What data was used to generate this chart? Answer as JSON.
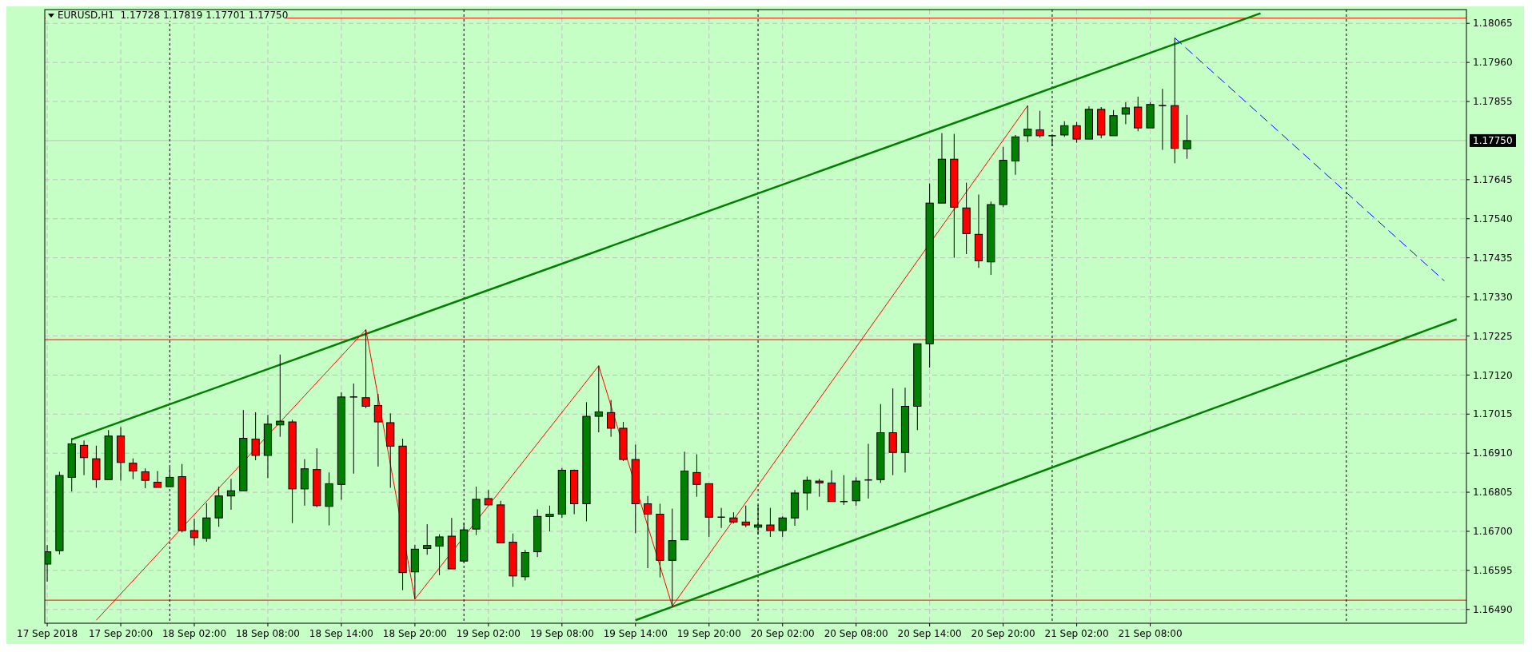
{
  "chart_data": {
    "type": "candlestick",
    "title": "EURUSD,H1  1.17728 1.17819 1.17701 1.17750",
    "x": [
      "2018-09-17T14:00",
      "2018-09-17T15:00",
      "2018-09-17T16:00",
      "2018-09-17T17:00",
      "2018-09-17T18:00",
      "2018-09-17T19:00",
      "2018-09-17T20:00",
      "2018-09-17T21:00",
      "2018-09-17T22:00",
      "2018-09-17T23:00",
      "2018-09-18T00:00",
      "2018-09-18T01:00",
      "2018-09-18T02:00",
      "2018-09-18T03:00",
      "2018-09-18T04:00",
      "2018-09-18T05:00",
      "2018-09-18T06:00",
      "2018-09-18T07:00",
      "2018-09-18T08:00",
      "2018-09-18T09:00",
      "2018-09-18T10:00",
      "2018-09-18T11:00",
      "2018-09-18T12:00",
      "2018-09-18T13:00",
      "2018-09-18T14:00",
      "2018-09-18T15:00",
      "2018-09-18T16:00",
      "2018-09-18T17:00",
      "2018-09-18T18:00",
      "2018-09-18T19:00",
      "2018-09-18T20:00",
      "2018-09-18T21:00",
      "2018-09-18T22:00",
      "2018-09-18T23:00",
      "2018-09-19T00:00",
      "2018-09-19T01:00",
      "2018-09-19T02:00",
      "2018-09-19T03:00",
      "2018-09-19T04:00",
      "2018-09-19T05:00",
      "2018-09-19T06:00",
      "2018-09-19T07:00",
      "2018-09-19T08:00",
      "2018-09-19T09:00",
      "2018-09-19T10:00",
      "2018-09-19T11:00",
      "2018-09-19T12:00",
      "2018-09-19T13:00",
      "2018-09-19T14:00",
      "2018-09-19T15:00",
      "2018-09-19T16:00",
      "2018-09-19T17:00",
      "2018-09-19T18:00",
      "2018-09-19T19:00",
      "2018-09-19T20:00",
      "2018-09-19T21:00",
      "2018-09-19T22:00",
      "2018-09-19T23:00",
      "2018-09-20T00:00",
      "2018-09-20T01:00",
      "2018-09-20T02:00",
      "2018-09-20T03:00",
      "2018-09-20T04:00",
      "2018-09-20T05:00",
      "2018-09-20T06:00",
      "2018-09-20T07:00",
      "2018-09-20T08:00",
      "2018-09-20T09:00",
      "2018-09-20T10:00",
      "2018-09-20T11:00",
      "2018-09-20T12:00",
      "2018-09-20T13:00",
      "2018-09-20T14:00",
      "2018-09-20T15:00",
      "2018-09-20T16:00",
      "2018-09-20T17:00",
      "2018-09-20T18:00",
      "2018-09-20T19:00",
      "2018-09-20T20:00",
      "2018-09-20T21:00",
      "2018-09-20T22:00",
      "2018-09-20T23:00",
      "2018-09-21T00:00",
      "2018-09-21T01:00",
      "2018-09-21T02:00",
      "2018-09-21T03:00",
      "2018-09-21T04:00",
      "2018-09-21T05:00",
      "2018-09-21T06:00",
      "2018-09-21T07:00",
      "2018-09-21T08:00",
      "2018-09-21T09:00",
      "2018-09-21T10:00",
      "2018-09-21T11:00"
    ],
    "ohlc": [
      [
        1.16612,
        1.16663,
        1.16565,
        1.16645
      ],
      [
        1.16648,
        1.1686,
        1.16638,
        1.1685
      ],
      [
        1.16845,
        1.1695,
        1.16807,
        1.16935
      ],
      [
        1.16931,
        1.16944,
        1.16851,
        1.16898
      ],
      [
        1.16895,
        1.1693,
        1.16817,
        1.16839
      ],
      [
        1.16839,
        1.16972,
        1.16839,
        1.16956
      ],
      [
        1.16956,
        1.1698,
        1.16836,
        1.16885
      ],
      [
        1.16883,
        1.16896,
        1.1684,
        1.16862
      ],
      [
        1.1686,
        1.16869,
        1.16816,
        1.16837
      ],
      [
        1.16832,
        1.16862,
        1.16818,
        1.16818
      ],
      [
        1.1682,
        1.16872,
        1.1682,
        1.16845
      ],
      [
        1.16847,
        1.16881,
        1.16697,
        1.16702
      ],
      [
        1.16702,
        1.16734,
        1.16662,
        1.16683
      ],
      [
        1.16681,
        1.16776,
        1.16672,
        1.16736
      ],
      [
        1.16736,
        1.1682,
        1.16712,
        1.16795
      ],
      [
        1.16795,
        1.16841,
        1.16758,
        1.16809
      ],
      [
        1.16809,
        1.17026,
        1.16809,
        1.1695
      ],
      [
        1.16948,
        1.1702,
        1.16891,
        1.16904
      ],
      [
        1.16904,
        1.17013,
        1.16843,
        1.16988
      ],
      [
        1.16986,
        1.17175,
        1.16954,
        1.16996
      ],
      [
        1.16994,
        1.17,
        1.16722,
        1.16814
      ],
      [
        1.16814,
        1.16894,
        1.16769,
        1.16868
      ],
      [
        1.16866,
        1.16923,
        1.16765,
        1.16769
      ],
      [
        1.16767,
        1.16858,
        1.16716,
        1.16828
      ],
      [
        1.16826,
        1.17074,
        1.16785,
        1.17061
      ],
      [
        1.17061,
        1.17097,
        1.16855,
        1.17061
      ],
      [
        1.17059,
        1.17242,
        1.17031,
        1.17036
      ],
      [
        1.17038,
        1.17069,
        1.16874,
        1.16994
      ],
      [
        1.16992,
        1.17017,
        1.16817,
        1.16929
      ],
      [
        1.16929,
        1.16949,
        1.16542,
        1.16589
      ],
      [
        1.16591,
        1.16664,
        1.16518,
        1.16652
      ],
      [
        1.16654,
        1.16719,
        1.16637,
        1.16662
      ],
      [
        1.1666,
        1.16692,
        1.16582,
        1.16685
      ],
      [
        1.16687,
        1.16736,
        1.16599,
        1.16599
      ],
      [
        1.1662,
        1.16723,
        1.16616,
        1.16704
      ],
      [
        1.16706,
        1.1682,
        1.1669,
        1.16786
      ],
      [
        1.16788,
        1.16811,
        1.16771,
        1.16771
      ],
      [
        1.16771,
        1.16782,
        1.16669,
        1.16669
      ],
      [
        1.16671,
        1.16694,
        1.16551,
        1.1658
      ],
      [
        1.16578,
        1.1665,
        1.16568,
        1.16643
      ],
      [
        1.16645,
        1.16759,
        1.16631,
        1.1674
      ],
      [
        1.1674,
        1.16769,
        1.167,
        1.16746
      ],
      [
        1.16746,
        1.1687,
        1.16736,
        1.16864
      ],
      [
        1.16864,
        1.16866,
        1.16746,
        1.16774
      ],
      [
        1.16774,
        1.17047,
        1.16727,
        1.17009
      ],
      [
        1.17009,
        1.17145,
        1.16966,
        1.17021
      ],
      [
        1.17019,
        1.17053,
        1.16954,
        1.16977
      ],
      [
        1.16977,
        1.16994,
        1.16889,
        1.16893
      ],
      [
        1.16893,
        1.16933,
        1.16695,
        1.16774
      ],
      [
        1.16774,
        1.16795,
        1.16601,
        1.16746
      ],
      [
        1.16746,
        1.16774,
        1.16576,
        1.16622
      ],
      [
        1.16622,
        1.16761,
        1.16499,
        1.16675
      ],
      [
        1.16677,
        1.16914,
        1.16677,
        1.16862
      ],
      [
        1.16858,
        1.16907,
        1.16793,
        1.16826
      ],
      [
        1.16828,
        1.16828,
        1.16685,
        1.16738
      ],
      [
        1.16738,
        1.16763,
        1.16709,
        1.16738
      ],
      [
        1.16736,
        1.16751,
        1.16721,
        1.16725
      ],
      [
        1.16725,
        1.16769,
        1.16711,
        1.16717
      ],
      [
        1.16711,
        1.16771,
        1.16692,
        1.16717
      ],
      [
        1.16717,
        1.16763,
        1.16685,
        1.16702
      ],
      [
        1.16702,
        1.1674,
        1.16685,
        1.16736
      ],
      [
        1.16736,
        1.16811,
        1.16715,
        1.16803
      ],
      [
        1.16803,
        1.16847,
        1.16757,
        1.16837
      ],
      [
        1.16835,
        1.16841,
        1.16793,
        1.1683
      ],
      [
        1.1683,
        1.16864,
        1.1678,
        1.1678
      ],
      [
        1.1678,
        1.16851,
        1.16771,
        1.1678
      ],
      [
        1.16782,
        1.16845,
        1.16769,
        1.16835
      ],
      [
        1.16838,
        1.16935,
        1.16788,
        1.16838
      ],
      [
        1.16839,
        1.17042,
        1.1683,
        1.16965
      ],
      [
        1.16965,
        1.17084,
        1.16851,
        1.16912
      ],
      [
        1.16912,
        1.17086,
        1.16858,
        1.17036
      ],
      [
        1.17036,
        1.17204,
        1.16972,
        1.17204
      ],
      [
        1.17204,
        1.17635,
        1.1714,
        1.17582
      ],
      [
        1.17582,
        1.1777,
        1.17582,
        1.177
      ],
      [
        1.177,
        1.17768,
        1.17435,
        1.17571
      ],
      [
        1.17569,
        1.17637,
        1.17445,
        1.175
      ],
      [
        1.17498,
        1.17605,
        1.17408,
        1.17427
      ],
      [
        1.17424,
        1.17586,
        1.17389,
        1.17578
      ],
      [
        1.17578,
        1.17733,
        1.17571,
        1.17697
      ],
      [
        1.17695,
        1.17765,
        1.17658,
        1.1776
      ],
      [
        1.17763,
        1.17844,
        1.17746,
        1.17781
      ],
      [
        1.17779,
        1.1783,
        1.17758,
        1.17763
      ],
      [
        1.17763,
        1.17763,
        1.17735,
        1.17763
      ],
      [
        1.17765,
        1.17802,
        1.1776,
        1.1779
      ],
      [
        1.1779,
        1.178,
        1.17744,
        1.17754
      ],
      [
        1.17754,
        1.17842,
        1.17754,
        1.17834
      ],
      [
        1.17834,
        1.1784,
        1.17756,
        1.17765
      ],
      [
        1.17763,
        1.17832,
        1.17763,
        1.17817
      ],
      [
        1.17821,
        1.17853,
        1.17794,
        1.17838
      ],
      [
        1.1784,
        1.17868,
        1.17775,
        1.17784
      ],
      [
        1.17784,
        1.17853,
        1.17784,
        1.17847
      ],
      [
        1.17844,
        1.17889,
        1.17725,
        1.17844
      ],
      [
        1.17844,
        1.18026,
        1.17689,
        1.17729
      ],
      [
        1.17728,
        1.17819,
        1.17701,
        1.1775
      ]
    ],
    "colors": [
      "#008000",
      "#008000",
      "#008000",
      "#ff0000",
      "#ff0000",
      "#008000",
      "#ff0000",
      "#ff0000",
      "#ff0000",
      "#ff0000",
      "#008000",
      "#ff0000",
      "#ff0000",
      "#008000",
      "#008000",
      "#008000",
      "#008000",
      "#ff0000",
      "#008000",
      "#008000",
      "#ff0000",
      "#008000",
      "#ff0000",
      "#008000",
      "#008000",
      "#000000",
      "#ff0000",
      "#ff0000",
      "#ff0000",
      "#ff0000",
      "#008000",
      "#008000",
      "#008000",
      "#ff0000",
      "#008000",
      "#008000",
      "#ff0000",
      "#ff0000",
      "#ff0000",
      "#008000",
      "#008000",
      "#008000",
      "#008000",
      "#ff0000",
      "#008000",
      "#008000",
      "#ff0000",
      "#ff0000",
      "#ff0000",
      "#ff0000",
      "#ff0000",
      "#008000",
      "#008000",
      "#ff0000",
      "#ff0000",
      "#000000",
      "#ff0000",
      "#ff0000",
      "#008000",
      "#ff0000",
      "#008000",
      "#008000",
      "#008000",
      "#ff0000",
      "#ff0000",
      "#000000",
      "#008000",
      "#000000",
      "#008000",
      "#ff0000",
      "#008000",
      "#008000",
      "#008000",
      "#008000",
      "#ff0000",
      "#ff0000",
      "#ff0000",
      "#008000",
      "#008000",
      "#008000",
      "#008000",
      "#ff0000",
      "#000000",
      "#008000",
      "#ff0000",
      "#008000",
      "#ff0000",
      "#008000",
      "#008000",
      "#ff0000",
      "#008000",
      "#000000",
      "#ff0000",
      "#008000"
    ],
    "series": [
      {
        "type": "line",
        "color": "#008000",
        "x": [
          "2018-09-17T16:00",
          "2018-09-21T17:00"
        ],
        "values": [
          1.16947,
          1.18092
        ]
      },
      {
        "type": "line",
        "color": "#008000",
        "x": [
          "2018-09-19T14:00",
          "2018-09-22T09:00"
        ],
        "values": [
          1.16461,
          1.1727
        ]
      },
      {
        "type": "line",
        "color": "#ff0000",
        "x": [
          "2018-09-17T18:00",
          "2018-09-18T16:00",
          "2018-09-18T20:00",
          "2018-09-19T11:00",
          "2018-09-19T17:00",
          "2018-09-20T22:00"
        ],
        "values": [
          1.16461,
          1.17242,
          1.16518,
          1.17145,
          1.16499,
          1.17844
        ]
      },
      {
        "type": "line",
        "color": "#0000ff",
        "line_style": "dashed",
        "x": [
          "2018-09-21T10:00",
          "2018-09-22T08:00"
        ],
        "values": [
          1.18026,
          1.17373
        ]
      }
    ],
    "xlim": [
      "2018-09-17T13:48",
      "2018-09-22T09:48"
    ],
    "xticks": [
      {
        "value": "2018-09-17T14:00",
        "label": "17 Sep 2018"
      },
      {
        "value": "2018-09-17T20:00",
        "label": "17 Sep 20:00"
      },
      {
        "value": "2018-09-18T02:00",
        "label": "18 Sep 02:00"
      },
      {
        "value": "2018-09-18T08:00",
        "label": "18 Sep 08:00"
      },
      {
        "value": "2018-09-18T14:00",
        "label": "18 Sep 14:00"
      },
      {
        "value": "2018-09-18T20:00",
        "label": "18 Sep 20:00"
      },
      {
        "value": "2018-09-19T02:00",
        "label": "19 Sep 02:00"
      },
      {
        "value": "2018-09-19T08:00",
        "label": "19 Sep 08:00"
      },
      {
        "value": "2018-09-19T14:00",
        "label": "19 Sep 14:00"
      },
      {
        "value": "2018-09-19T20:00",
        "label": "19 Sep 20:00"
      },
      {
        "value": "2018-09-20T02:00",
        "label": "20 Sep 02:00"
      },
      {
        "value": "2018-09-20T08:00",
        "label": "20 Sep 08:00"
      },
      {
        "value": "2018-09-20T14:00",
        "label": "20 Sep 14:00"
      },
      {
        "value": "2018-09-20T20:00",
        "label": "20 Sep 20:00"
      },
      {
        "value": "2018-09-21T02:00",
        "label": "21 Sep 02:00"
      },
      {
        "value": "2018-09-21T08:00",
        "label": "21 Sep 08:00"
      }
    ],
    "ylim": [
      1.16453,
      1.18102
    ],
    "yticks": [
      {
        "value": 1.1649,
        "label": "1.16490"
      },
      {
        "value": 1.16595,
        "label": "1.16595"
      },
      {
        "value": 1.167,
        "label": "1.16700"
      },
      {
        "value": 1.16805,
        "label": "1.16805"
      },
      {
        "value": 1.1691,
        "label": "1.16910"
      },
      {
        "value": 1.17015,
        "label": "1.17015"
      },
      {
        "value": 1.1712,
        "label": "1.17120"
      },
      {
        "value": 1.17225,
        "label": "1.17225"
      },
      {
        "value": 1.1733,
        "label": "1.17330"
      },
      {
        "value": 1.17435,
        "label": "1.17435"
      },
      {
        "value": 1.1754,
        "label": "1.17540"
      },
      {
        "value": 1.17645,
        "label": "1.17645"
      },
      {
        "value": 1.17855,
        "label": "1.17855"
      },
      {
        "value": 1.1796,
        "label": "1.17960"
      },
      {
        "value": 1.18065,
        "label": "1.18065"
      }
    ],
    "grid": true,
    "ref_lines": [
      {
        "axis": "y",
        "value": 1.18079,
        "color": "#ff0000"
      },
      {
        "axis": "y",
        "value": 1.17215,
        "color": "#ff0000"
      },
      {
        "axis": "y",
        "value": 1.16515,
        "color": "#ff0000"
      },
      {
        "axis": "y",
        "value": 1.1775,
        "label": "1.17750",
        "color": "#c0c0c0"
      },
      {
        "axis": "x",
        "value": "2018-09-18T00:00",
        "color": "#000000",
        "line_style": "dotted"
      },
      {
        "axis": "x",
        "value": "2018-09-19T00:00",
        "color": "#000000",
        "line_style": "dotted"
      },
      {
        "axis": "x",
        "value": "2018-09-20T00:00",
        "color": "#000000",
        "line_style": "dotted"
      },
      {
        "axis": "x",
        "value": "2018-09-21T00:00",
        "color": "#000000",
        "line_style": "dotted"
      },
      {
        "axis": "x",
        "value": "2018-09-22T00:00",
        "color": "#000000",
        "line_style": "dotted"
      }
    ]
  }
}
